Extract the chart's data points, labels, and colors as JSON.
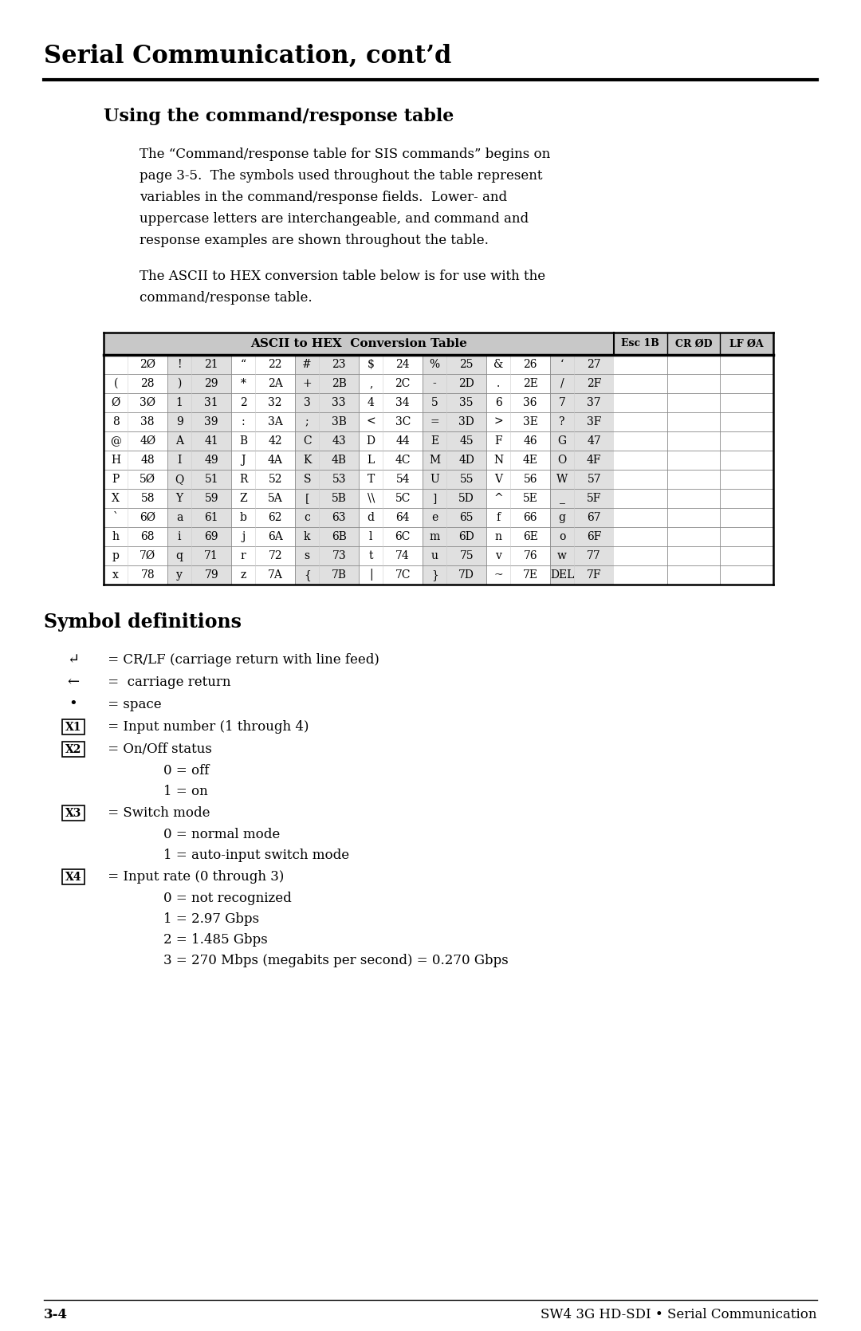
{
  "page_title": "Serial Communication, cont’d",
  "section1_title": "Using the command/response table",
  "para1_lines": [
    "The “Command/response table for SIS commands” begins on",
    "page 3-5.  The symbols used throughout the table represent",
    "variables in the command/response fields.  Lower- and",
    "uppercase letters are interchangeable, and command and",
    "response examples are shown throughout the table."
  ],
  "para2_lines": [
    "The ASCII to HEX conversion table below is for use with the",
    "command/response table."
  ],
  "table_header_left": "ASCII to HEX  Conversion Table",
  "table_header_right": [
    "Esc 1B",
    "CR ØD",
    "LF ØA"
  ],
  "table_rows": [
    [
      " ",
      "2Ø",
      "!",
      "21",
      "“",
      "22",
      "#",
      "23",
      "$",
      "24",
      "%",
      "25",
      "&",
      "26",
      "‘",
      "27"
    ],
    [
      "(",
      "28",
      ")",
      "29",
      "*",
      "2A",
      "+",
      "2B",
      ",",
      "2C",
      "-",
      "2D",
      ".",
      "2E",
      "/",
      "2F"
    ],
    [
      "Ø",
      "3Ø",
      "1",
      "31",
      "2",
      "32",
      "3",
      "33",
      "4",
      "34",
      "5",
      "35",
      "6",
      "36",
      "7",
      "37"
    ],
    [
      "8",
      "38",
      "9",
      "39",
      ":",
      "3A",
      ";",
      "3B",
      "<",
      "3C",
      "=",
      "3D",
      ">",
      "3E",
      "?",
      "3F"
    ],
    [
      "@",
      "4Ø",
      "A",
      "41",
      "B",
      "42",
      "C",
      "43",
      "D",
      "44",
      "E",
      "45",
      "F",
      "46",
      "G",
      "47"
    ],
    [
      "H",
      "48",
      "I",
      "49",
      "J",
      "4A",
      "K",
      "4B",
      "L",
      "4C",
      "M",
      "4D",
      "N",
      "4E",
      "O",
      "4F"
    ],
    [
      "P",
      "5Ø",
      "Q",
      "51",
      "R",
      "52",
      "S",
      "53",
      "T",
      "54",
      "U",
      "55",
      "V",
      "56",
      "W",
      "57"
    ],
    [
      "X",
      "58",
      "Y",
      "59",
      "Z",
      "5A",
      "[",
      "5B",
      "\\\\",
      "5C",
      "]",
      "5D",
      "^",
      "5E",
      "_",
      "5F"
    ],
    [
      "`",
      "6Ø",
      "a",
      "61",
      "b",
      "62",
      "c",
      "63",
      "d",
      "64",
      "e",
      "65",
      "f",
      "66",
      "g",
      "67"
    ],
    [
      "h",
      "68",
      "i",
      "69",
      "j",
      "6A",
      "k",
      "6B",
      "l",
      "6C",
      "m",
      "6D",
      "n",
      "6E",
      "o",
      "6F"
    ],
    [
      "p",
      "7Ø",
      "q",
      "71",
      "r",
      "72",
      "s",
      "73",
      "t",
      "74",
      "u",
      "75",
      "v",
      "76",
      "w",
      "77"
    ],
    [
      "x",
      "78",
      "y",
      "79",
      "z",
      "7A",
      "{",
      "7B",
      "|",
      "7C",
      "}",
      "7D",
      "~",
      "7E",
      "DEL",
      "7F"
    ]
  ],
  "section2_title": "Symbol definitions",
  "symbol_defs": [
    {
      "symbol": "↵",
      "boxed": false,
      "text": " = CR/LF (carriage return with line feed)",
      "sub": []
    },
    {
      "symbol": "←",
      "boxed": false,
      "text": " =  carriage return",
      "sub": []
    },
    {
      "symbol": "•",
      "boxed": false,
      "text": " = space",
      "sub": []
    },
    {
      "symbol": "X1",
      "boxed": true,
      "text": " = Input number (1 through 4)",
      "sub": []
    },
    {
      "symbol": "X2",
      "boxed": true,
      "text": " = On/Off status",
      "sub": [
        "0 = off",
        "1 = on"
      ]
    },
    {
      "symbol": "X3",
      "boxed": true,
      "text": " = Switch mode",
      "sub": [
        "0 = normal mode",
        "1 = auto-input switch mode"
      ]
    },
    {
      "symbol": "X4",
      "boxed": true,
      "text": " = Input rate (0 through 3)",
      "sub": [
        "0 = not recognized",
        "1 = 2.97 Gbps",
        "2 = 1.485 Gbps",
        "3 = 270 Mbps (megabits per second) = 0.270 Gbps"
      ]
    }
  ],
  "footer_left": "3-4",
  "footer_right": "SW4 3G HD-SDI • Serial Communication",
  "bg_color": "#ffffff",
  "text_color": "#000000",
  "table_header_bg": "#c8c8c8",
  "table_alt_bg": "#e0e0e0"
}
